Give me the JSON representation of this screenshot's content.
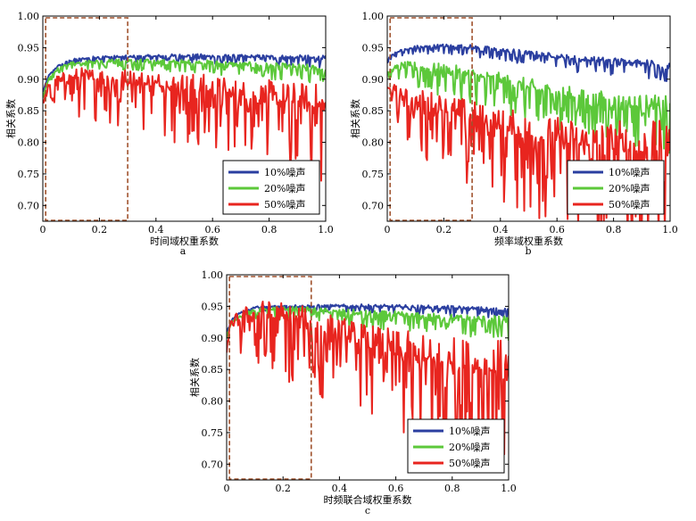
{
  "chart_data": [
    {
      "panel_label": "a",
      "type": "line",
      "xlabel": "时间域权重系数",
      "ylabel": "相关系数",
      "xlim": [
        0,
        1.0
      ],
      "ylim": [
        0.675,
        1.0
      ],
      "xticks": [
        "0",
        "0.2",
        "0.4",
        "0.6",
        "0.8",
        "1.0"
      ],
      "yticks": [
        "0.70",
        "0.75",
        "0.80",
        "0.85",
        "0.90",
        "0.95",
        "1.00"
      ],
      "legend_position": "lower-right",
      "highlight_box": {
        "x": [
          0.01,
          0.3
        ],
        "y": [
          0.675,
          1.0
        ]
      },
      "series": [
        {
          "name": "10%噪声",
          "color": "#2b3fa0",
          "x": [
            0,
            0.02,
            0.05,
            0.1,
            0.2,
            0.3,
            0.4,
            0.5,
            0.6,
            0.7,
            0.8,
            0.9,
            1.0
          ],
          "y": [
            0.88,
            0.905,
            0.92,
            0.93,
            0.935,
            0.935,
            0.936,
            0.937,
            0.936,
            0.935,
            0.935,
            0.934,
            0.933
          ]
        },
        {
          "name": "20%噪声",
          "color": "#5cc83a",
          "x": [
            0,
            0.02,
            0.05,
            0.1,
            0.2,
            0.3,
            0.4,
            0.5,
            0.6,
            0.7,
            0.8,
            0.9,
            1.0
          ],
          "y": [
            0.87,
            0.9,
            0.915,
            0.925,
            0.928,
            0.928,
            0.927,
            0.926,
            0.925,
            0.922,
            0.92,
            0.918,
            0.915
          ]
        },
        {
          "name": "50%噪声",
          "color": "#e8251f",
          "x": [
            0,
            0.02,
            0.05,
            0.1,
            0.2,
            0.3,
            0.4,
            0.5,
            0.6,
            0.7,
            0.8,
            0.9,
            1.0
          ],
          "y": [
            0.86,
            0.885,
            0.895,
            0.9,
            0.9,
            0.895,
            0.89,
            0.885,
            0.878,
            0.87,
            0.865,
            0.86,
            0.855
          ]
        }
      ]
    },
    {
      "panel_label": "b",
      "type": "line",
      "xlabel": "频率域权重系数",
      "ylabel": "相关系数",
      "xlim": [
        0,
        1.0
      ],
      "ylim": [
        0.675,
        1.0
      ],
      "xticks": [
        "0",
        "0.2",
        "0.4",
        "0.6",
        "0.8",
        "1.0"
      ],
      "yticks": [
        "0.70",
        "0.75",
        "0.80",
        "0.85",
        "0.90",
        "0.95",
        "1.00"
      ],
      "legend_position": "lower-right",
      "highlight_box": {
        "x": [
          0.01,
          0.3
        ],
        "y": [
          0.675,
          1.0
        ]
      },
      "series": [
        {
          "name": "10%噪声",
          "color": "#2b3fa0",
          "x": [
            0,
            0.02,
            0.05,
            0.1,
            0.2,
            0.3,
            0.4,
            0.5,
            0.6,
            0.7,
            0.8,
            0.9,
            1.0
          ],
          "y": [
            0.93,
            0.94,
            0.945,
            0.95,
            0.952,
            0.95,
            0.945,
            0.94,
            0.935,
            0.93,
            0.928,
            0.925,
            0.92
          ]
        },
        {
          "name": "20%噪声",
          "color": "#5cc83a",
          "x": [
            0,
            0.02,
            0.05,
            0.1,
            0.2,
            0.3,
            0.4,
            0.5,
            0.6,
            0.7,
            0.8,
            0.9,
            1.0
          ],
          "y": [
            0.905,
            0.915,
            0.92,
            0.918,
            0.912,
            0.905,
            0.895,
            0.885,
            0.875,
            0.865,
            0.86,
            0.855,
            0.85
          ]
        },
        {
          "name": "50%噪声",
          "color": "#e8251f",
          "x": [
            0,
            0.02,
            0.05,
            0.1,
            0.2,
            0.3,
            0.4,
            0.5,
            0.6,
            0.7,
            0.8,
            0.9,
            1.0
          ],
          "y": [
            0.885,
            0.88,
            0.87,
            0.86,
            0.85,
            0.835,
            0.82,
            0.81,
            0.8,
            0.795,
            0.79,
            0.785,
            0.78
          ]
        }
      ]
    },
    {
      "panel_label": "c",
      "type": "line",
      "xlabel": "时频联合域权重系数",
      "ylabel": "相关系数",
      "xlim": [
        0,
        1.0
      ],
      "ylim": [
        0.675,
        1.0
      ],
      "xticks": [
        "0",
        "0.2",
        "0.4",
        "0.6",
        "0.8",
        "1.0"
      ],
      "yticks": [
        "0.70",
        "0.75",
        "0.80",
        "0.85",
        "0.90",
        "0.95",
        "1.00"
      ],
      "legend_position": "lower-right",
      "highlight_box": {
        "x": [
          0.01,
          0.3
        ],
        "y": [
          0.675,
          1.0
        ]
      },
      "series": [
        {
          "name": "10%噪声",
          "color": "#2b3fa0",
          "x": [
            0,
            0.02,
            0.05,
            0.1,
            0.2,
            0.3,
            0.4,
            0.5,
            0.6,
            0.7,
            0.8,
            0.9,
            1.0
          ],
          "y": [
            0.91,
            0.93,
            0.94,
            0.948,
            0.95,
            0.95,
            0.95,
            0.95,
            0.949,
            0.948,
            0.947,
            0.945,
            0.943
          ]
        },
        {
          "name": "20%噪声",
          "color": "#5cc83a",
          "x": [
            0,
            0.02,
            0.05,
            0.1,
            0.2,
            0.3,
            0.4,
            0.5,
            0.6,
            0.7,
            0.8,
            0.9,
            1.0
          ],
          "y": [
            0.905,
            0.925,
            0.935,
            0.942,
            0.945,
            0.943,
            0.94,
            0.937,
            0.935,
            0.932,
            0.93,
            0.928,
            0.925
          ]
        },
        {
          "name": "50%噪声",
          "color": "#e8251f",
          "x": [
            0,
            0.02,
            0.05,
            0.1,
            0.2,
            0.3,
            0.4,
            0.5,
            0.6,
            0.7,
            0.8,
            0.9,
            1.0
          ],
          "y": [
            0.9,
            0.92,
            0.93,
            0.935,
            0.93,
            0.915,
            0.9,
            0.885,
            0.872,
            0.862,
            0.855,
            0.85,
            0.845
          ]
        }
      ]
    }
  ]
}
